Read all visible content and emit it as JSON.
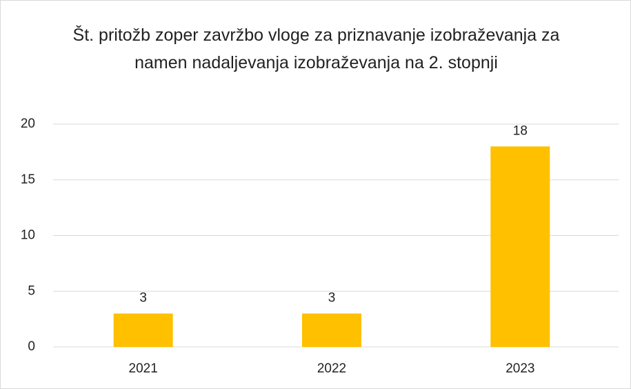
{
  "chart_data": {
    "type": "bar",
    "title": "Št. pritožb zoper zavržbo vloge za priznavanje izobraževanja za namen nadaljevanja izobraževanja na 2. stopnji",
    "categories": [
      "2021",
      "2022",
      "2023"
    ],
    "values": [
      3,
      3,
      18
    ],
    "color": "#ffc000",
    "ylim": [
      0,
      20
    ],
    "yticks": [
      0,
      5,
      10,
      15,
      20
    ],
    "grid": true
  }
}
